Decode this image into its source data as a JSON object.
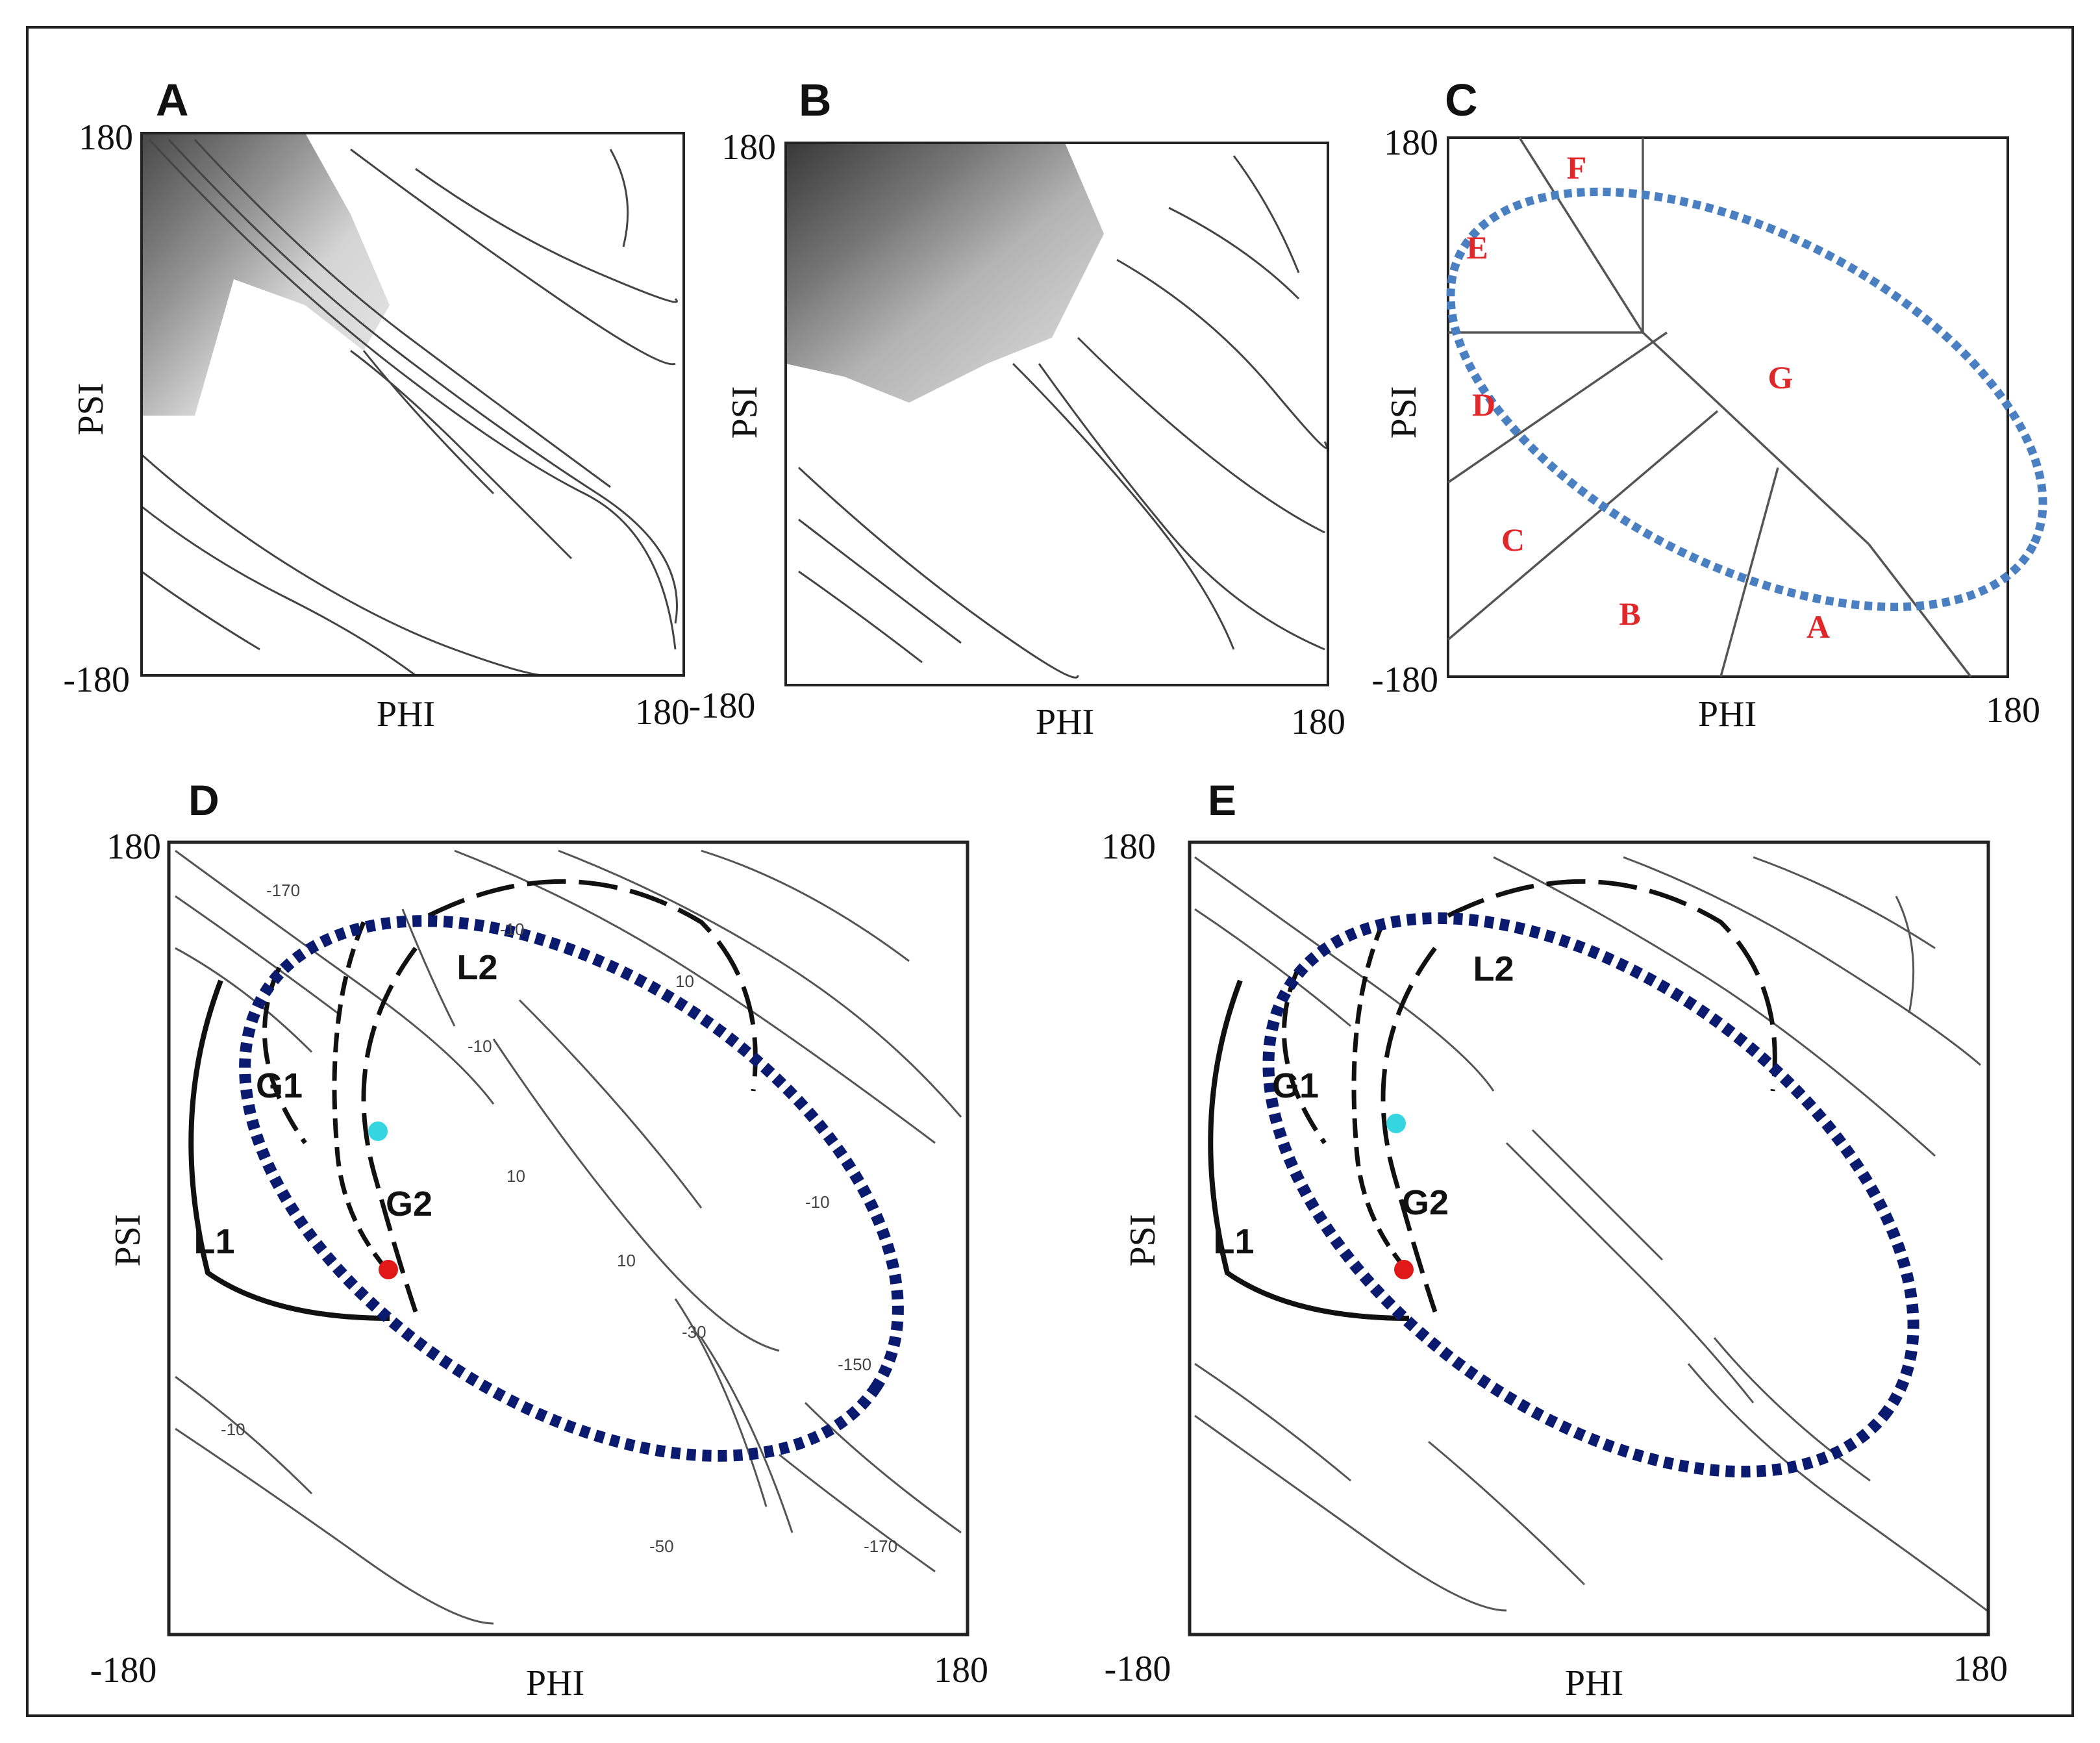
{
  "figure": {
    "panels": [
      {
        "id": "A",
        "label": "A",
        "x_title": "PHI",
        "y_title": "PSI",
        "x_min": "-180",
        "x_max": "180",
        "y_max": "180",
        "y_min": "-180",
        "shaded_region": "top-left"
      },
      {
        "id": "B",
        "label": "B",
        "x_title": "PHI",
        "y_title": "PSI",
        "x_min": "-180",
        "x_max": "180",
        "y_max": "180",
        "shaded_region": "top-left"
      },
      {
        "id": "C",
        "label": "C",
        "x_title": "PHI",
        "y_title": "PSI",
        "x_max": "180",
        "y_max": "180",
        "y_min": "-180",
        "regions": [
          "A",
          "B",
          "C",
          "D",
          "E",
          "F",
          "G"
        ],
        "ellipse_color": "#4a7fc1"
      },
      {
        "id": "D",
        "label": "D",
        "x_title": "PHI",
        "y_title": "PSI",
        "x_min": "-180",
        "x_max": "180",
        "y_max": "180",
        "curve_labels": [
          "G1",
          "G2",
          "L1",
          "L2"
        ],
        "contour_labels": [
          "-170",
          "-10",
          "10",
          "-10",
          "10",
          "10",
          "-10",
          "-30",
          "-150",
          "-170",
          "-50",
          "-10"
        ],
        "ellipse_color": "#0a1a6e",
        "marker_colors": [
          "#35d6e0",
          "#e01818"
        ]
      },
      {
        "id": "E",
        "label": "E",
        "x_title": "PHI",
        "y_title": "PSI",
        "x_min": "-180",
        "x_max": "180",
        "y_max": "180",
        "curve_labels": [
          "G1",
          "G2",
          "L1",
          "L2"
        ],
        "ellipse_color": "#0a1a6e",
        "marker_colors": [
          "#35d6e0",
          "#e01818"
        ]
      }
    ]
  }
}
